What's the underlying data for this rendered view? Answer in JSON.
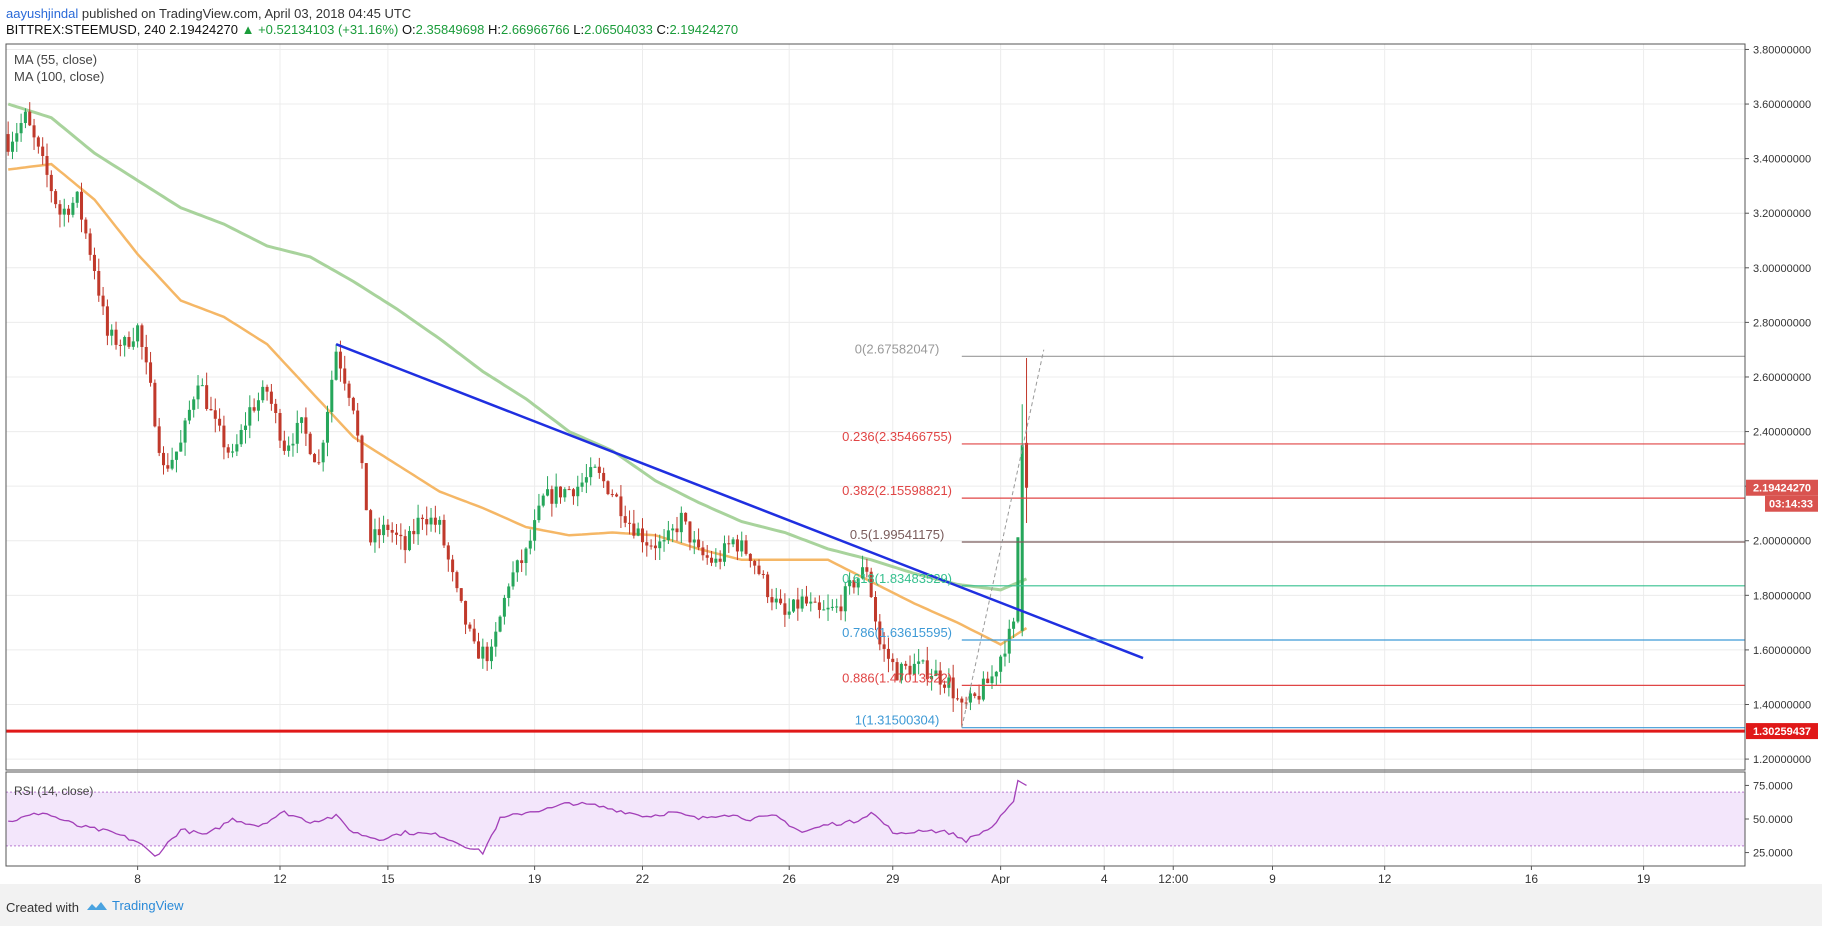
{
  "header": {
    "author": "aayushjindal",
    "published_text": " published on TradingView.com, April 03, 2018 04:45 UTC",
    "symbol": "BITTREX:STEEMUSD, 240",
    "last": "2.19424270",
    "change": "▲ +0.52134103 (+31.16%)",
    "o_label": "O:",
    "o_value": "2.35849698",
    "h_label": "H:",
    "h_value": "2.66966766",
    "l_label": "L:",
    "l_value": "2.06504033",
    "c_label": "C:",
    "c_value": "2.19424270"
  },
  "legend": {
    "ma55": "MA (55, close)",
    "ma100": "MA (100, close)",
    "rsi": "RSI (14, close)"
  },
  "footer": {
    "created": "Created with",
    "brand": "TradingView"
  },
  "colors": {
    "up": "#26a65b",
    "down": "#c0392b",
    "ma55": "#f5b766",
    "ma100": "#a8d39c",
    "trendline": "#1f2fe0",
    "support": "#e01818",
    "rsi": "#a23fb8",
    "rsi_band": "#f3e6fb"
  },
  "chart_data": {
    "type": "candlestick",
    "price_axis": {
      "ylim": [
        1.16,
        3.82
      ],
      "ticks": [
        "3.80000000",
        "3.60000000",
        "3.40000000",
        "3.20000000",
        "3.00000000",
        "2.80000000",
        "2.60000000",
        "2.40000000",
        "2.20000000",
        "2.00000000",
        "1.80000000",
        "1.60000000",
        "1.40000000",
        "1.20000000"
      ]
    },
    "time_axis": {
      "labels": [
        "8",
        "12",
        "15",
        "19",
        "22",
        "26",
        "29",
        "Apr",
        "4",
        "12:00",
        "9",
        "12",
        "16",
        "19"
      ],
      "bar_index": [
        30,
        63,
        88,
        122,
        147,
        181,
        205,
        230,
        254,
        270,
        293,
        319,
        353,
        379
      ]
    },
    "last_price_label": "2.19424270",
    "countdown_label": "03:14:33",
    "support_label": "1.30259437",
    "support_level": 1.3026,
    "trendline": {
      "from": [
        76,
        2.72
      ],
      "to": [
        263,
        1.57
      ]
    },
    "fib_levels": [
      {
        "label": "0(2.67582047)",
        "value": 2.6758,
        "color": "#999999"
      },
      {
        "label": "0.236(2.35466755)",
        "value": 2.3547,
        "color": "#e04545"
      },
      {
        "label": "0.382(2.15598821)",
        "value": 2.156,
        "color": "#e04545"
      },
      {
        "label": "0.5(1.99541175)",
        "value": 1.9954,
        "color": "#7a5c5c"
      },
      {
        "label": "0.618(1.83483529)",
        "value": 1.8348,
        "color": "#36c08f"
      },
      {
        "label": "0.786(1.63615595)",
        "value": 1.6362,
        "color": "#3e9ad6"
      },
      {
        "label": "0.886(1.47013622)",
        "value": 1.4701,
        "color": "#e04545"
      },
      {
        "label": "1(1.31500304)",
        "value": 1.315,
        "color": "#3e9ad6"
      }
    ],
    "close_keypoints": [
      [
        0,
        3.46
      ],
      [
        4,
        3.55
      ],
      [
        8,
        3.38
      ],
      [
        12,
        3.2
      ],
      [
        16,
        3.25
      ],
      [
        20,
        3.0
      ],
      [
        23,
        2.75
      ],
      [
        27,
        2.72
      ],
      [
        30,
        2.78
      ],
      [
        33,
        2.55
      ],
      [
        36,
        2.26
      ],
      [
        40,
        2.35
      ],
      [
        44,
        2.6
      ],
      [
        48,
        2.42
      ],
      [
        52,
        2.3
      ],
      [
        56,
        2.48
      ],
      [
        60,
        2.55
      ],
      [
        64,
        2.35
      ],
      [
        68,
        2.42
      ],
      [
        72,
        2.28
      ],
      [
        76,
        2.7
      ],
      [
        80,
        2.5
      ],
      [
        84,
        2.0
      ],
      [
        88,
        2.05
      ],
      [
        92,
        1.97
      ],
      [
        96,
        2.1
      ],
      [
        100,
        2.05
      ],
      [
        104,
        1.8
      ],
      [
        108,
        1.6
      ],
      [
        112,
        1.58
      ],
      [
        116,
        1.85
      ],
      [
        120,
        1.95
      ],
      [
        124,
        2.15
      ],
      [
        128,
        2.18
      ],
      [
        132,
        2.2
      ],
      [
        136,
        2.25
      ],
      [
        140,
        2.18
      ],
      [
        144,
        2.07
      ],
      [
        148,
        2.0
      ],
      [
        152,
        1.98
      ],
      [
        156,
        2.08
      ],
      [
        160,
        1.95
      ],
      [
        164,
        1.92
      ],
      [
        168,
        2.0
      ],
      [
        172,
        1.95
      ],
      [
        176,
        1.82
      ],
      [
        180,
        1.72
      ],
      [
        184,
        1.78
      ],
      [
        188,
        1.73
      ],
      [
        192,
        1.75
      ],
      [
        196,
        1.85
      ],
      [
        199,
        1.9
      ],
      [
        202,
        1.62
      ],
      [
        206,
        1.52
      ],
      [
        210,
        1.54
      ],
      [
        214,
        1.52
      ],
      [
        218,
        1.48
      ],
      [
        221,
        1.38
      ],
      [
        224,
        1.42
      ],
      [
        228,
        1.5
      ],
      [
        231,
        1.62
      ],
      [
        233,
        1.68
      ],
      [
        235,
        2.35
      ],
      [
        236,
        2.19
      ]
    ],
    "ma55_keypoints": [
      [
        0,
        3.36
      ],
      [
        10,
        3.38
      ],
      [
        20,
        3.25
      ],
      [
        30,
        3.05
      ],
      [
        40,
        2.88
      ],
      [
        50,
        2.82
      ],
      [
        60,
        2.72
      ],
      [
        70,
        2.55
      ],
      [
        80,
        2.38
      ],
      [
        90,
        2.28
      ],
      [
        100,
        2.18
      ],
      [
        110,
        2.12
      ],
      [
        120,
        2.05
      ],
      [
        130,
        2.02
      ],
      [
        140,
        2.03
      ],
      [
        150,
        2.02
      ],
      [
        160,
        1.97
      ],
      [
        170,
        1.93
      ],
      [
        180,
        1.93
      ],
      [
        190,
        1.93
      ],
      [
        200,
        1.85
      ],
      [
        210,
        1.77
      ],
      [
        220,
        1.7
      ],
      [
        230,
        1.62
      ],
      [
        236,
        1.68
      ]
    ],
    "ma100_keypoints": [
      [
        0,
        3.6
      ],
      [
        10,
        3.55
      ],
      [
        20,
        3.42
      ],
      [
        30,
        3.32
      ],
      [
        40,
        3.22
      ],
      [
        50,
        3.16
      ],
      [
        60,
        3.08
      ],
      [
        70,
        3.04
      ],
      [
        80,
        2.95
      ],
      [
        90,
        2.85
      ],
      [
        100,
        2.74
      ],
      [
        110,
        2.62
      ],
      [
        120,
        2.52
      ],
      [
        130,
        2.4
      ],
      [
        140,
        2.33
      ],
      [
        150,
        2.22
      ],
      [
        160,
        2.14
      ],
      [
        170,
        2.07
      ],
      [
        180,
        2.03
      ],
      [
        190,
        1.97
      ],
      [
        200,
        1.93
      ],
      [
        210,
        1.88
      ],
      [
        220,
        1.84
      ],
      [
        230,
        1.82
      ],
      [
        236,
        1.86
      ]
    ],
    "rsi_axis": {
      "ylim": [
        15,
        85
      ],
      "ticks": [
        "75.0000",
        "50.0000",
        "25.0000"
      ],
      "band": [
        30,
        70
      ]
    },
    "rsi_keypoints": [
      [
        0,
        48
      ],
      [
        8,
        55
      ],
      [
        16,
        45
      ],
      [
        24,
        40
      ],
      [
        30,
        33
      ],
      [
        34,
        22
      ],
      [
        40,
        42
      ],
      [
        46,
        38
      ],
      [
        52,
        50
      ],
      [
        58,
        45
      ],
      [
        64,
        55
      ],
      [
        70,
        48
      ],
      [
        76,
        52
      ],
      [
        80,
        40
      ],
      [
        86,
        35
      ],
      [
        92,
        40
      ],
      [
        100,
        38
      ],
      [
        106,
        30
      ],
      [
        110,
        25
      ],
      [
        114,
        50
      ],
      [
        120,
        55
      ],
      [
        126,
        58
      ],
      [
        130,
        62
      ],
      [
        136,
        60
      ],
      [
        142,
        56
      ],
      [
        148,
        52
      ],
      [
        154,
        55
      ],
      [
        160,
        50
      ],
      [
        166,
        54
      ],
      [
        172,
        50
      ],
      [
        178,
        52
      ],
      [
        184,
        40
      ],
      [
        190,
        46
      ],
      [
        196,
        48
      ],
      [
        200,
        55
      ],
      [
        206,
        38
      ],
      [
        212,
        42
      ],
      [
        218,
        40
      ],
      [
        222,
        34
      ],
      [
        228,
        44
      ],
      [
        233,
        62
      ],
      [
        234,
        80
      ],
      [
        236,
        75
      ]
    ]
  }
}
